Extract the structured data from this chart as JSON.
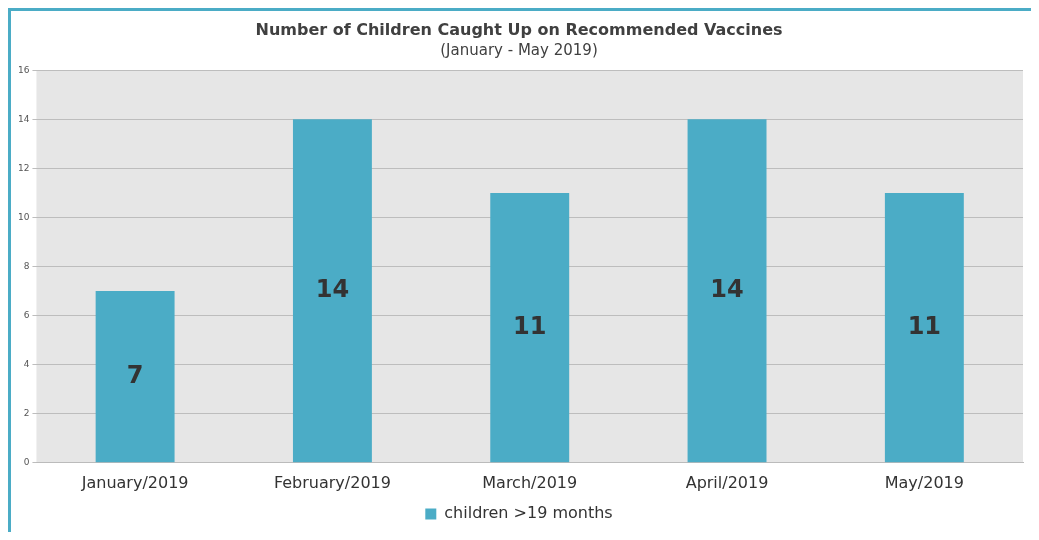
{
  "chart_data": {
    "type": "bar",
    "title": "Number of Children Caught Up on Recommended Vaccines",
    "subtitle": "(January - May 2019)",
    "categories": [
      "January/2019",
      "February/2019",
      "March/2019",
      "April/2019",
      "May/2019"
    ],
    "series": [
      {
        "name": "children >19 months",
        "color": "#4bacc6",
        "values": [
          7,
          14,
          11,
          14,
          11
        ]
      }
    ],
    "ylim": [
      0,
      16
    ],
    "yticks": [
      0,
      2,
      4,
      6,
      8,
      10,
      12,
      14,
      16
    ],
    "grid": "y",
    "legend": "bottom",
    "data_labels": true
  }
}
